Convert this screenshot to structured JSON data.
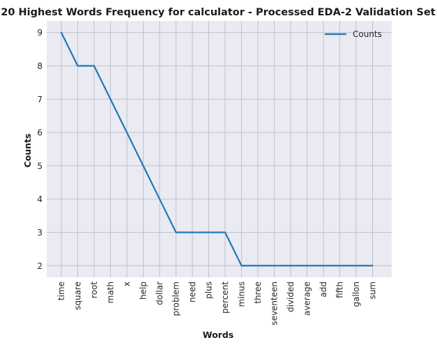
{
  "chart_data": {
    "type": "line",
    "title": "20 Highest Words Frequency for calculator - Processed EDA-2 Validation Set",
    "xlabel": "Words",
    "ylabel": "Counts",
    "categories": [
      "time",
      "square",
      "root",
      "math",
      "x",
      "help",
      "dollar",
      "problem",
      "need",
      "plus",
      "percent",
      "minus",
      "three",
      "seventeen",
      "divided",
      "average",
      "add",
      "fifth",
      "gallon",
      "sum"
    ],
    "series": [
      {
        "name": "Counts",
        "values": [
          9,
          8,
          8,
          7,
          6,
          5,
          4,
          3,
          3,
          3,
          3,
          2,
          2,
          2,
          2,
          2,
          2,
          2,
          2,
          2
        ]
      }
    ],
    "yticks": [
      2,
      3,
      4,
      5,
      6,
      7,
      8,
      9
    ],
    "ylim": [
      1.65,
      9.35
    ],
    "grid": true,
    "legend_position": "upper-right",
    "colors": {
      "line": "#1f77b4",
      "plot_bg": "#eaeaf2",
      "grid": "#c0c0c8"
    }
  }
}
